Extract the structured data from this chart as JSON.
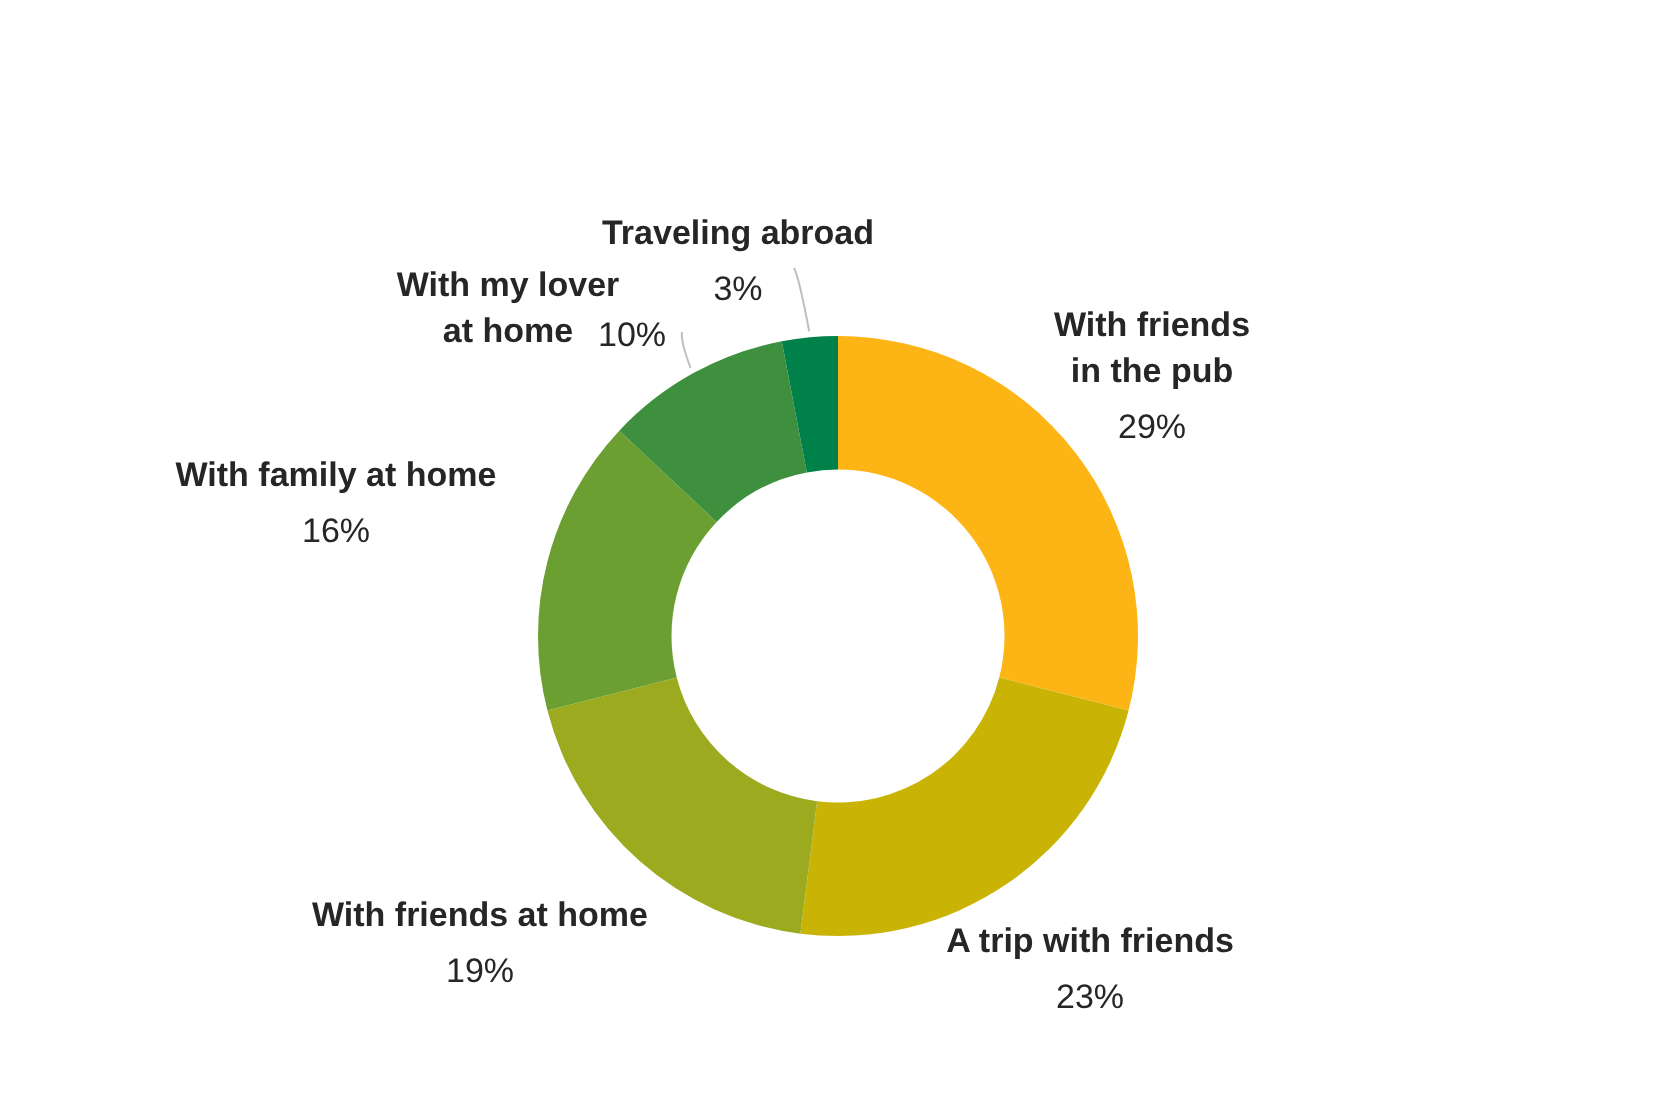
{
  "chart_data": {
    "type": "donut",
    "categories": [
      "With friends\nin the pub",
      "A trip with friends",
      "With friends at home",
      "With family at home",
      "With my lover\nat home",
      "Traveling abroad"
    ],
    "values": [
      29,
      23,
      19,
      16,
      10,
      3
    ],
    "value_labels": [
      "29%",
      "23%",
      "19%",
      "16%",
      "10%",
      "3%"
    ],
    "colors": [
      "#fdb515",
      "#c9b406",
      "#9caa1f",
      "#6b9f31",
      "#3e903f",
      "#00814a"
    ]
  }
}
